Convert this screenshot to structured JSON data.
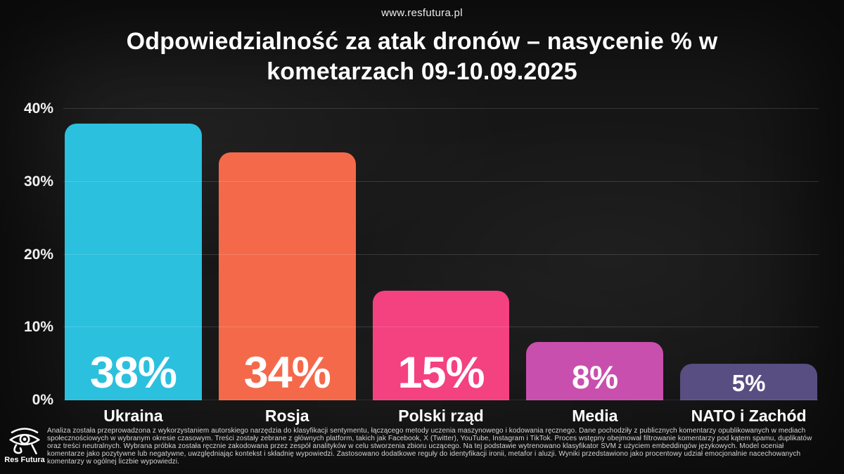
{
  "header": {
    "site_url": "www.resfutura.pl",
    "title_line1": "Odpowiedzialność za atak dronów – nasycenie % w",
    "title_line2": "kometarzach 09-10.09.2025"
  },
  "chart_data": {
    "type": "bar",
    "title": "Odpowiedzialność za atak dronów – nasycenie % w kometarzach 09-10.09.2025",
    "categories": [
      "Ukraina",
      "Rosja",
      "Polski rząd",
      "Media",
      "NATO i Zachód"
    ],
    "values": [
      38,
      34,
      15,
      8,
      5
    ],
    "value_labels": [
      "38%",
      "34%",
      "15%",
      "8%",
      "5%"
    ],
    "colors": [
      "#2bc0de",
      "#f5694b",
      "#f4417f",
      "#c94fae",
      "#584e82"
    ],
    "xlabel": "",
    "ylabel": "",
    "ylim": [
      0,
      40
    ],
    "yticks": [
      {
        "label": "40%",
        "value": 40
      },
      {
        "label": "30%",
        "value": 30
      },
      {
        "label": "20%",
        "value": 20
      },
      {
        "label": "10%",
        "value": 10
      },
      {
        "label": "0%",
        "value": 0
      }
    ],
    "grid": true,
    "legend": false
  },
  "footer": {
    "logo_text": "Res Futura",
    "logo_icon": "eye-of-horus-icon",
    "methodology": "Analiza została przeprowadzona z wykorzystaniem autorskiego narzędzia do klasyfikacji sentymentu, łączącego metody uczenia maszynowego i kodowania ręcznego. Dane pochodziły z publicznych komentarzy opublikowanych w mediach społecznościowych w wybranym okresie czasowym. Treści zostały zebrane z głównych platform, takich jak Facebook, X (Twitter), YouTube, Instagram i TikTok. Proces wstępny obejmował filtrowanie komentarzy pod kątem spamu, duplikatów oraz treści neutralnych. Wybrana próbka została ręcznie zakodowana przez zespół analityków w celu stworzenia zbioru uczącego. Na tej podstawie wytrenowano klasyfikator SVM z użyciem embeddingów językowych. Model oceniał komentarze jako pozytywne lub negatywne, uwzględniając kontekst i składnię wypowiedzi. Zastosowano dodatkowe reguły do identyfikacji ironii, metafor i aluzji. Wyniki przedstawiono jako procentowy udział emocjonalnie nacechowanych komentarzy w ogólnej liczbie wypowiedzi."
  },
  "colors": {
    "background": "#171717",
    "text": "#ffffff",
    "grid": "rgba(255,255,255,0.14)"
  }
}
